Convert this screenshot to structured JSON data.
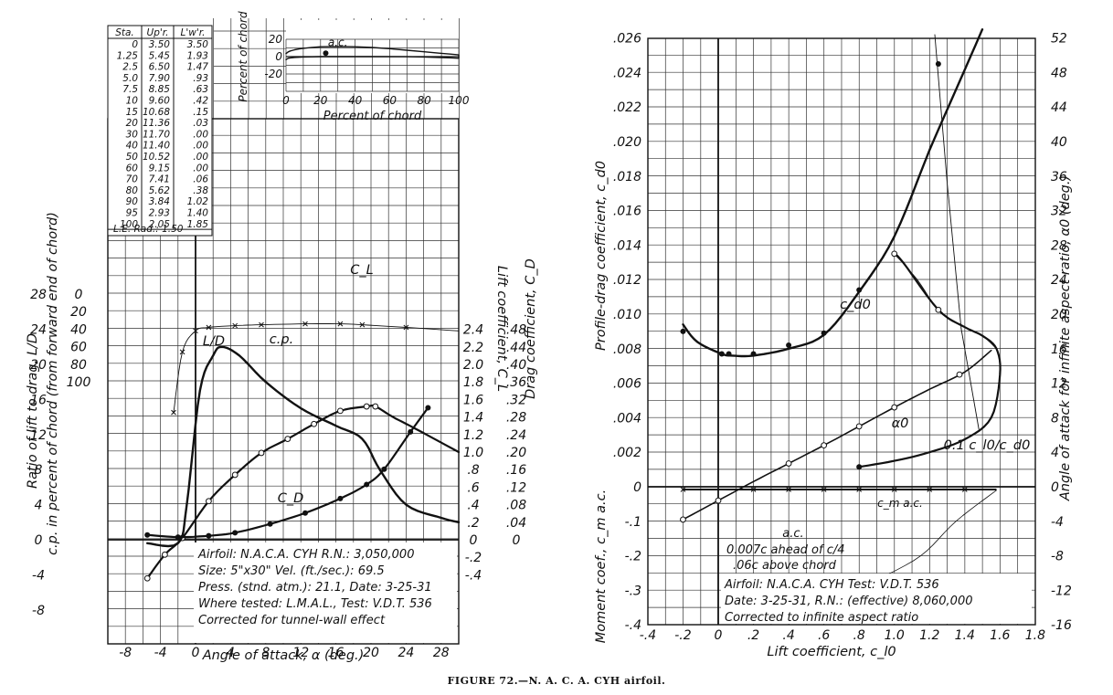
{
  "caption": "FIGURE 72.—N. A. C. A. CYH airfoil.",
  "left": {
    "x_axis": {
      "label": "Angle of attack, α (deg.)",
      "ticks": [
        "-8",
        "-4",
        "0",
        "4",
        "8",
        "12",
        "16",
        "20",
        "24",
        "28"
      ]
    },
    "ld_axis": {
      "label": "Ratio of lift to drag, L/D",
      "ticks": [
        "-8",
        "-4",
        "0",
        "4",
        "8",
        "12",
        "16",
        "20",
        "24",
        "28"
      ]
    },
    "cp_axis": {
      "label": "c.p. in percent of chord (from forward end of chord)",
      "ticks": [
        "0",
        "20",
        "40",
        "60",
        "80",
        "100"
      ]
    },
    "cl_axis": {
      "label": "Lift coefficient, C_L",
      "ticks": [
        "-.4",
        "-.2",
        "0",
        ".2",
        ".4",
        ".6",
        ".8",
        "1.0",
        "1.2",
        "1.4",
        "1.6",
        "1.8",
        "2.0",
        "2.2",
        "2.4"
      ]
    },
    "cd_axis": {
      "label": "Drag coefficient, C_D",
      "ticks": [
        "0",
        ".04",
        ".08",
        ".12",
        ".16",
        ".20",
        ".24",
        ".28",
        ".32",
        ".36",
        ".40",
        ".44",
        ".48"
      ]
    },
    "curve_labels": {
      "ld": "L/D",
      "cp": "c.p.",
      "cl": "C_L",
      "cd": "C_D"
    },
    "info": [
      "Airfoil: N.A.C.A. CYH      R.N.: 3,050,000",
      "Size: 5\"x30\"           Vel. (ft./sec.): 69.5",
      "Press. (stnd. atm.): 21.1, Date: 3-25-31",
      "Where tested: L.M.A.L., Test: V.D.T. 536",
      "Corrected for tunnel-wall effect"
    ],
    "ordinates": {
      "headers": [
        "Sta.",
        "Up'r.",
        "L'w'r."
      ],
      "rows": [
        [
          "0",
          "3.50",
          "3.50"
        ],
        [
          "1.25",
          "5.45",
          "1.93"
        ],
        [
          "2.5",
          "6.50",
          "1.47"
        ],
        [
          "5.0",
          "7.90",
          ".93"
        ],
        [
          "7.5",
          "8.85",
          ".63"
        ],
        [
          "10",
          "9.60",
          ".42"
        ],
        [
          "15",
          "10.68",
          ".15"
        ],
        [
          "20",
          "11.36",
          ".03"
        ],
        [
          "30",
          "11.70",
          ".00"
        ],
        [
          "40",
          "11.40",
          ".00"
        ],
        [
          "50",
          "10.52",
          ".00"
        ],
        [
          "60",
          "9.15",
          ".00"
        ],
        [
          "70",
          "7.41",
          ".06"
        ],
        [
          "80",
          "5.62",
          ".38"
        ],
        [
          "90",
          "3.84",
          "1.02"
        ],
        [
          "95",
          "2.93",
          "1.40"
        ],
        [
          "100",
          "2.05",
          "1.85"
        ]
      ],
      "footer": "L.E. Rad.: 1.50"
    },
    "profile": {
      "x_label": "Percent of chord",
      "y_label": "Percent of chord",
      "x_ticks": [
        "0",
        "20",
        "40",
        "60",
        "80",
        "100"
      ],
      "y_ticks": [
        "20",
        "0",
        "-20"
      ],
      "ac_label": "a.c."
    }
  },
  "right": {
    "x_axis": {
      "label": "Lift coefficient, c_l0",
      "ticks": [
        "-.4",
        "-.2",
        "0",
        ".2",
        ".4",
        ".6",
        ".8",
        "1.0",
        "1.2",
        "1.4",
        "1.6",
        "1.8"
      ]
    },
    "cd_axis": {
      "label": "Profile-drag coefficient, c_d0",
      "ticks": [
        ".026",
        ".024",
        ".022",
        ".020",
        ".018",
        ".016",
        ".014",
        ".012",
        ".010",
        ".008",
        ".006",
        ".004",
        ".002",
        "0"
      ]
    },
    "cm_axis": {
      "label": "Moment coef., c_m a.c.",
      "ticks": [
        "-.1",
        "-.2",
        "-.3",
        "-.4"
      ]
    },
    "alpha_axis": {
      "label": "Angle of attack for infinite aspect ratio, α0 (deg.)",
      "ticks": [
        "52",
        "48",
        "44",
        "40",
        "36",
        "32",
        "28",
        "24",
        "20",
        "16",
        "12",
        "8",
        "4",
        "0",
        "-4",
        "-8",
        "-12",
        "-16"
      ]
    },
    "curve_labels": {
      "cd": "c_d0",
      "alpha": "α0",
      "ld": "0.1 c_l0/c_d0",
      "cm": "c_m a.c."
    },
    "ac_note": [
      "a.c.",
      "0.007c ahead of c/4",
      ".06c above chord"
    ],
    "info": [
      "Airfoil: N.A.C.A. CYH            Test: V.D.T. 536",
      "Date: 3-25-31, R.N.: (effective) 8,060,000",
      "Corrected to infinite aspect ratio"
    ]
  },
  "chart_data": [
    {
      "type": "line",
      "title": "",
      "xlabel": "Angle of attack, α (deg.)",
      "xlim": [
        -10,
        30
      ],
      "series": [
        {
          "name": "C_L",
          "axis": "Lift coefficient",
          "x": [
            -5.5,
            -3.5,
            -1.5,
            1.5,
            4.5,
            7.5,
            10.5,
            13.5,
            16.5,
            19.5,
            20.5,
            22.5,
            25,
            30
          ],
          "values": [
            -0.44,
            -0.17,
            0.02,
            0.44,
            0.74,
            0.99,
            1.15,
            1.32,
            1.47,
            1.52,
            1.52,
            1.4,
            1.27,
            1.0
          ]
        },
        {
          "name": "C_D",
          "axis": "Drag coefficient",
          "x": [
            -5.5,
            -2,
            1.5,
            4.5,
            8.5,
            12.5,
            16.5,
            19.5,
            21.5,
            24.5,
            26.5
          ],
          "values": [
            0.011,
            0.006,
            0.009,
            0.016,
            0.036,
            0.061,
            0.094,
            0.126,
            0.161,
            0.246,
            0.301
          ]
        },
        {
          "name": "L/D",
          "axis": "Ratio of lift to drag",
          "x": [
            -5.5,
            -2,
            -1,
            0.5,
            2,
            3,
            5,
            8,
            12,
            16,
            19,
            21,
            24,
            28,
            30
          ],
          "values": [
            -0.4,
            -0.4,
            4,
            17,
            21,
            22,
            21,
            18,
            15,
            13,
            11.5,
            8,
            4,
            2.5,
            2
          ]
        },
        {
          "name": "c.p.",
          "axis": "c.p. percent of chord",
          "x": [
            -2.5,
            -1.5,
            0,
            1.5,
            4.5,
            7.5,
            12.5,
            16.5,
            19,
            24,
            30
          ],
          "values": [
            135,
            66,
            42,
            38,
            36,
            35,
            34,
            34,
            35,
            38,
            42
          ]
        }
      ]
    },
    {
      "type": "line",
      "title": "",
      "xlabel": "Lift coefficient, c_l0",
      "xlim": [
        -0.4,
        1.8
      ],
      "series": [
        {
          "name": "c_d0",
          "axis": "Profile-drag coefficient",
          "x": [
            -0.2,
            -0.12,
            0.02,
            0.08,
            0.2,
            0.4,
            0.6,
            0.8,
            1.0,
            1.2,
            1.35,
            1.5
          ],
          "values": [
            0.0094,
            0.0084,
            0.0077,
            0.0076,
            0.0076,
            0.008,
            0.0088,
            0.0113,
            0.0145,
            0.0195,
            0.023,
            0.0265
          ]
        },
        {
          "name": "α0",
          "axis": "Angle of attack α0 (deg.)",
          "x": [
            -0.2,
            0,
            0.2,
            0.4,
            0.6,
            0.8,
            1.0,
            1.2,
            1.4,
            1.55
          ],
          "values": [
            -3.8,
            -1.6,
            0.6,
            2.7,
            4.8,
            7,
            9.2,
            11.3,
            13.3,
            15.8
          ]
        },
        {
          "name": "0.1 c_l0/c_d0",
          "axis": "Angle of attack α0 (deg.)",
          "x": [
            0.8,
            1.0,
            1.2,
            1.4,
            1.55,
            1.6,
            1.58,
            1.5,
            1.4,
            1.25,
            1.05,
            1.0
          ],
          "values": [
            2.3,
            3,
            4,
            5.5,
            8,
            13,
            16,
            17.5,
            18.5,
            20.5,
            26,
            27
          ]
        },
        {
          "name": "c_m a.c.",
          "axis": "Moment coef.",
          "x": [
            -0.2,
            0.2,
            0.6,
            1.0,
            1.4,
            1.58
          ],
          "values": [
            -0.008,
            -0.008,
            -0.008,
            -0.008,
            -0.008,
            -0.008
          ]
        }
      ]
    }
  ]
}
